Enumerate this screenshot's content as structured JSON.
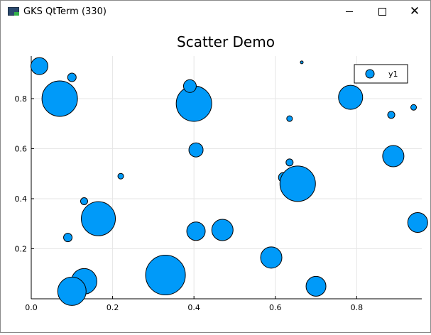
{
  "window": {
    "title": "GKS QtTerm (330)",
    "minimize_glyph": "minimize-icon",
    "maximize_glyph": "maximize-icon",
    "close_glyph": "✕"
  },
  "chart_data": {
    "type": "scatter",
    "title": "Scatter Demo",
    "xlabel": "",
    "ylabel": "",
    "xlim": [
      0,
      0.96
    ],
    "ylim": [
      0,
      0.97
    ],
    "xticks": [
      0.0,
      0.2,
      0.4,
      0.6,
      0.8
    ],
    "xtick_labels": [
      "0.0",
      "0.2",
      "0.4",
      "0.6",
      "0.8"
    ],
    "yticks": [
      0.2,
      0.4,
      0.6,
      0.8
    ],
    "ytick_labels": [
      "0.2",
      "0.4",
      "0.6",
      "0.8"
    ],
    "grid": true,
    "legend_position": "top-right",
    "marker_color": "#009af9",
    "series": [
      {
        "name": "y1",
        "points": [
          {
            "x": 0.02,
            "y": 0.93,
            "size": 12
          },
          {
            "x": 0.07,
            "y": 0.8,
            "size": 25
          },
          {
            "x": 0.1,
            "y": 0.885,
            "size": 6
          },
          {
            "x": 0.09,
            "y": 0.245,
            "size": 6
          },
          {
            "x": 0.13,
            "y": 0.39,
            "size": 5
          },
          {
            "x": 0.165,
            "y": 0.32,
            "size": 24
          },
          {
            "x": 0.13,
            "y": 0.07,
            "size": 18
          },
          {
            "x": 0.1,
            "y": 0.03,
            "size": 20
          },
          {
            "x": 0.22,
            "y": 0.49,
            "size": 4
          },
          {
            "x": 0.33,
            "y": 0.095,
            "size": 28
          },
          {
            "x": 0.4,
            "y": 0.78,
            "size": 25
          },
          {
            "x": 0.39,
            "y": 0.85,
            "size": 9
          },
          {
            "x": 0.405,
            "y": 0.595,
            "size": 10
          },
          {
            "x": 0.405,
            "y": 0.27,
            "size": 13
          },
          {
            "x": 0.47,
            "y": 0.275,
            "size": 15
          },
          {
            "x": 0.59,
            "y": 0.165,
            "size": 15
          },
          {
            "x": 0.62,
            "y": 0.485,
            "size": 7
          },
          {
            "x": 0.635,
            "y": 0.545,
            "size": 5
          },
          {
            "x": 0.635,
            "y": 0.72,
            "size": 4
          },
          {
            "x": 0.655,
            "y": 0.46,
            "size": 25
          },
          {
            "x": 0.665,
            "y": 0.945,
            "size": 2
          },
          {
            "x": 0.7,
            "y": 0.05,
            "size": 14
          },
          {
            "x": 0.785,
            "y": 0.805,
            "size": 17
          },
          {
            "x": 0.885,
            "y": 0.735,
            "size": 5
          },
          {
            "x": 0.89,
            "y": 0.57,
            "size": 15
          },
          {
            "x": 0.94,
            "y": 0.765,
            "size": 4
          },
          {
            "x": 0.95,
            "y": 0.305,
            "size": 14
          }
        ]
      }
    ]
  }
}
